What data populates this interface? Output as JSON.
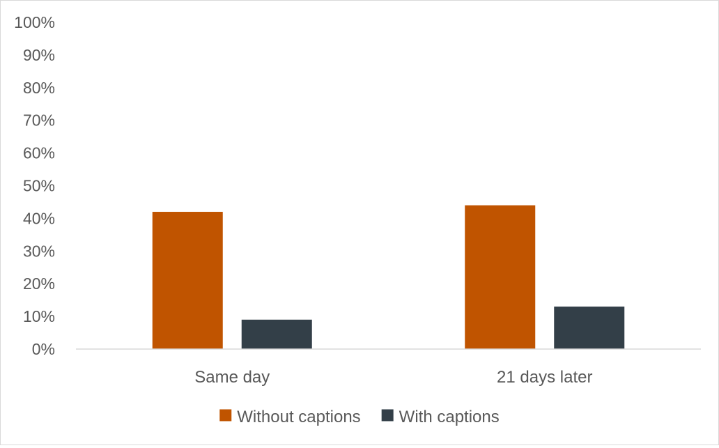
{
  "chart_data": {
    "type": "bar",
    "title": "",
    "xlabel": "",
    "ylabel": "",
    "categories": [
      "Same day",
      "21 days later"
    ],
    "series": [
      {
        "name": "Without captions",
        "values": [
          42,
          44
        ],
        "color": "#c05400"
      },
      {
        "name": "With captions",
        "values": [
          9,
          13
        ],
        "color": "#333f48"
      }
    ],
    "ylim": [
      0,
      100
    ],
    "yticks": [
      "0%",
      "10%",
      "20%",
      "30%",
      "40%",
      "50%",
      "60%",
      "70%",
      "80%",
      "90%",
      "100%"
    ],
    "grid": false,
    "legend_position": "bottom"
  }
}
